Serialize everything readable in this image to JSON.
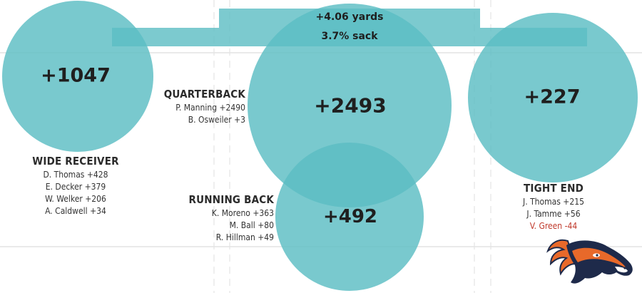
{
  "banner": {
    "yards": "+4.06 yards",
    "sack": "3.7% sack"
  },
  "colors": {
    "bubble": "#5bbdc3",
    "negative": "#c0392b",
    "text": "#1f1f1f"
  },
  "positions": [
    {
      "key": "wr",
      "value": "+1047",
      "title": "WIDE RECEIVER",
      "players": [
        {
          "text": "D. Thomas +428"
        },
        {
          "text": "E. Decker +379"
        },
        {
          "text": "W. Welker +206"
        },
        {
          "text": "A. Caldwell +34"
        }
      ]
    },
    {
      "key": "qb",
      "value": "+2493",
      "title": "QUARTERBACK",
      "players": [
        {
          "text": "P. Manning +2490"
        },
        {
          "text": "B. Osweiler +3"
        }
      ]
    },
    {
      "key": "rb",
      "value": "+492",
      "title": "RUNNING BACK",
      "players": [
        {
          "text": "K. Moreno +363"
        },
        {
          "text": "M. Ball +80"
        },
        {
          "text": "R. Hillman +49"
        }
      ]
    },
    {
      "key": "te",
      "value": "+227",
      "title": "TIGHT END",
      "players": [
        {
          "text": "J. Thomas +215"
        },
        {
          "text": "J. Tamme +56"
        },
        {
          "text": "V. Green -44",
          "negative": true
        }
      ]
    }
  ],
  "logo": {
    "icon": "broncos-horse-logo-icon"
  }
}
